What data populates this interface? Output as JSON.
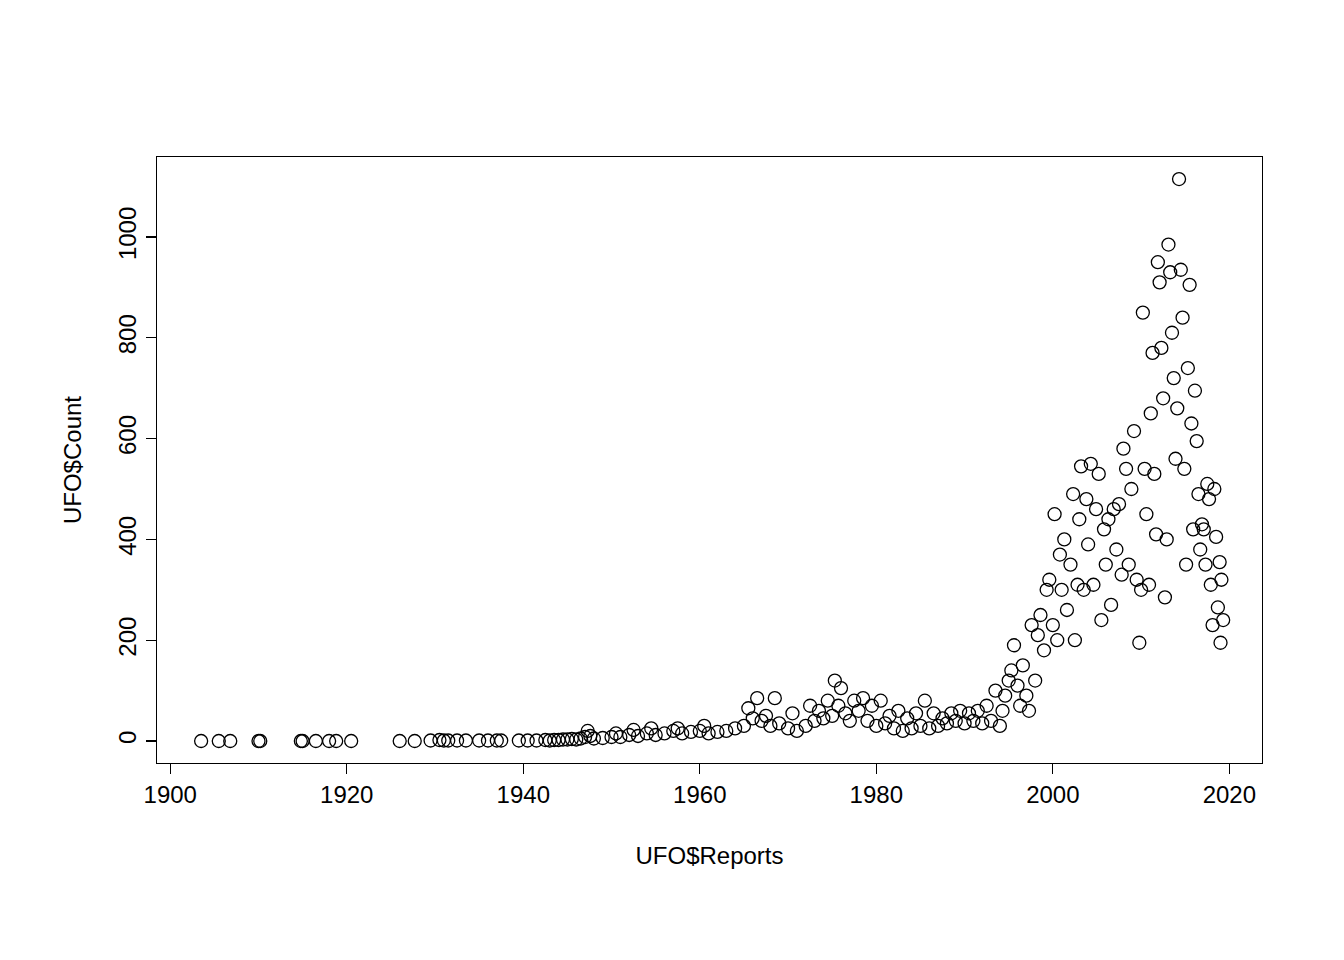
{
  "chart_data": {
    "type": "scatter",
    "x_label": "UFO$Reports",
    "y_label": "UFO$Count",
    "marker": "circle-open",
    "color": "#000000",
    "grid": false,
    "xlim": [
      1898.5,
      2023.7
    ],
    "xticks": [
      1900,
      1920,
      1940,
      1960,
      1980,
      2000,
      2020
    ],
    "ylim": [
      -43.6,
      1158.7
    ],
    "yticks": [
      0,
      200,
      400,
      600,
      800,
      1000
    ],
    "x": [
      1903.5,
      1905.5,
      1906.8,
      1910,
      1910.2,
      1914.8,
      1915,
      1916.5,
      1918,
      1918.8,
      1920.5,
      1926,
      1927.7,
      1929.5,
      1930.5,
      1931,
      1931.5,
      1932.5,
      1933.5,
      1935,
      1936,
      1937,
      1937.5,
      1939.5,
      1940.5,
      1941.5,
      1942.5,
      1943,
      1943.5,
      1944,
      1944.5,
      1945,
      1945.5,
      1946,
      1946.5,
      1947,
      1947.3,
      1947.6,
      1948,
      1949,
      1950,
      1950.5,
      1951,
      1952,
      1952.5,
      1953,
      1954,
      1954.5,
      1955,
      1956,
      1957,
      1957.5,
      1958,
      1959,
      1960,
      1960.5,
      1961,
      1962,
      1963,
      1964,
      1965,
      1965.5,
      1966,
      1966.5,
      1967,
      1967.5,
      1968,
      1968.5,
      1969,
      1970,
      1970.5,
      1971,
      1972,
      1972.5,
      1973,
      1973.5,
      1974,
      1974.5,
      1975,
      1975.3,
      1975.7,
      1976,
      1976.5,
      1977,
      1977.5,
      1978,
      1978.5,
      1979,
      1979.5,
      1980,
      1980.5,
      1981,
      1981.5,
      1982,
      1982.5,
      1983,
      1983.5,
      1984,
      1984.5,
      1985,
      1985.5,
      1986,
      1986.5,
      1987,
      1987.5,
      1988,
      1988.5,
      1989,
      1989.5,
      1990,
      1990.5,
      1991,
      1991.5,
      1992,
      1992.5,
      1993,
      1993.5,
      1994,
      1994.3,
      1994.6,
      1995,
      1995.3,
      1995.6,
      1996,
      1996.3,
      1996.6,
      1997,
      1997.3,
      1997.6,
      1998,
      1998.3,
      1998.6,
      1999,
      1999.3,
      1999.6,
      2000,
      2000.2,
      2000.5,
      2000.8,
      2001,
      2001.3,
      2001.6,
      2002,
      2002.3,
      2002.5,
      2002.8,
      2003,
      2003.2,
      2003.5,
      2003.8,
      2004,
      2004.3,
      2004.6,
      2004.9,
      2005.2,
      2005.5,
      2005.8,
      2006,
      2006.3,
      2006.6,
      2006.9,
      2007.2,
      2007.5,
      2007.8,
      2008,
      2008.3,
      2008.6,
      2008.9,
      2009.2,
      2009.5,
      2009.8,
      2010,
      2010.2,
      2010.4,
      2010.6,
      2010.9,
      2011.1,
      2011.3,
      2011.5,
      2011.7,
      2011.9,
      2012.1,
      2012.3,
      2012.5,
      2012.7,
      2012.9,
      2013.1,
      2013.3,
      2013.5,
      2013.7,
      2013.9,
      2014.1,
      2014.3,
      2014.5,
      2014.7,
      2014.9,
      2015.1,
      2015.3,
      2015.5,
      2015.7,
      2015.9,
      2016.1,
      2016.3,
      2016.5,
      2016.7,
      2016.9,
      2017.1,
      2017.3,
      2017.5,
      2017.7,
      2017.9,
      2018.1,
      2018.3,
      2018.5,
      2018.7,
      2018.9,
      2019,
      2019.1,
      2019.3
    ],
    "values": [
      0,
      0,
      0,
      0,
      0,
      0,
      0,
      0,
      0,
      0,
      0,
      0,
      0,
      1,
      2,
      1,
      1,
      1,
      1,
      1,
      1,
      1,
      1,
      1,
      1,
      1,
      2,
      1,
      2,
      2,
      3,
      3,
      4,
      3,
      5,
      8,
      20,
      10,
      5,
      6,
      8,
      15,
      8,
      12,
      22,
      10,
      15,
      25,
      12,
      15,
      20,
      25,
      15,
      18,
      20,
      30,
      15,
      18,
      20,
      25,
      30,
      65,
      45,
      85,
      40,
      50,
      30,
      85,
      35,
      25,
      55,
      20,
      30,
      70,
      40,
      60,
      45,
      80,
      50,
      120,
      70,
      105,
      55,
      40,
      80,
      60,
      85,
      40,
      70,
      30,
      80,
      35,
      50,
      25,
      60,
      20,
      45,
      25,
      55,
      30,
      80,
      25,
      55,
      30,
      45,
      35,
      55,
      40,
      60,
      35,
      55,
      40,
      60,
      35,
      70,
      40,
      100,
      30,
      60,
      90,
      120,
      140,
      190,
      110,
      70,
      150,
      90,
      60,
      230,
      120,
      210,
      250,
      180,
      300,
      320,
      230,
      450,
      200,
      370,
      300,
      400,
      260,
      350,
      490,
      200,
      310,
      440,
      545,
      300,
      480,
      390,
      550,
      310,
      460,
      530,
      240,
      420,
      350,
      440,
      270,
      460,
      380,
      470,
      330,
      580,
      540,
      350,
      500,
      615,
      320,
      195,
      300,
      850,
      540,
      450,
      310,
      650,
      770,
      530,
      410,
      950,
      910,
      780,
      680,
      285,
      400,
      985,
      930,
      810,
      720,
      560,
      660,
      1115,
      935,
      840,
      540,
      350,
      740,
      905,
      630,
      420,
      695,
      595,
      490,
      380,
      430,
      420,
      350,
      510,
      480,
      310,
      230,
      500,
      405,
      265,
      355,
      195,
      320,
      240
    ]
  }
}
